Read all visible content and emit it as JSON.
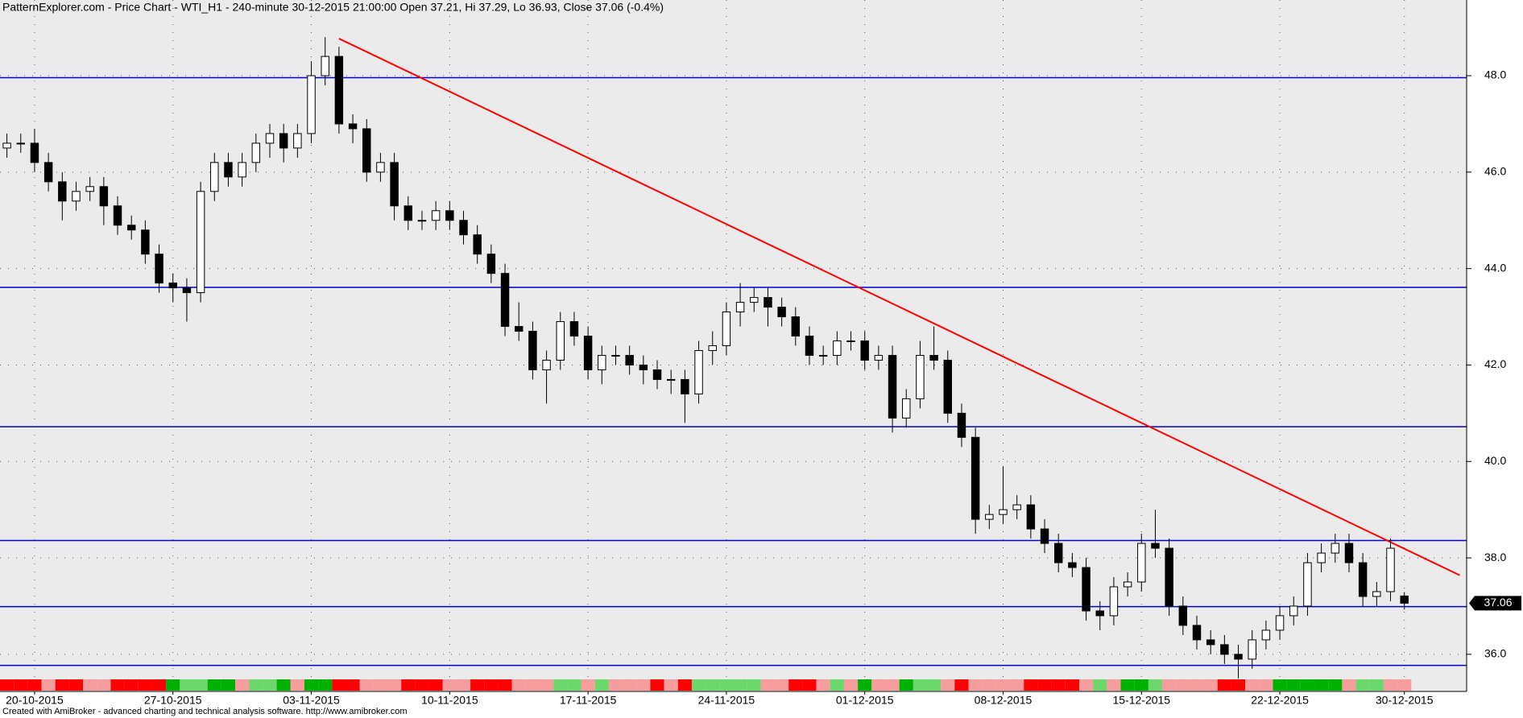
{
  "chart_data": {
    "type": "candlestick",
    "title": "PatternExplorer.com - Price Chart - WTI_H1 - 240-minute 30-12-2015 21:00:00 Open 37.21, Hi 37.29, Lo 36.93, Close 37.06 (-0.4%)",
    "footer": "Created with AmiBroker - advanced charting and technical analysis software. http://www.amibroker.com",
    "categories": [
      null,
      null,
      "20-10-2015",
      null,
      null,
      null,
      null,
      null,
      null,
      null,
      null,
      null,
      "27-10-2015",
      null,
      null,
      null,
      null,
      null,
      null,
      null,
      null,
      null,
      "03-11-2015",
      null,
      null,
      null,
      null,
      null,
      null,
      null,
      null,
      null,
      "10-11-2015",
      null,
      null,
      null,
      null,
      null,
      null,
      null,
      null,
      null,
      "17-11-2015",
      null,
      null,
      null,
      null,
      null,
      null,
      null,
      null,
      null,
      "24-11-2015",
      null,
      null,
      null,
      null,
      null,
      null,
      null,
      null,
      null,
      "01-12-2015",
      null,
      null,
      null,
      null,
      null,
      null,
      null,
      null,
      null,
      "08-12-2015",
      null,
      null,
      null,
      null,
      null,
      null,
      null,
      null,
      null,
      "15-12-2015",
      null,
      null,
      null,
      null,
      null,
      null,
      null,
      null,
      null,
      "22-12-2015",
      null,
      null,
      null,
      null,
      null,
      null,
      null,
      null,
      "30-12-2015"
    ],
    "open": [
      46.5,
      46.6,
      46.6,
      46.2,
      45.8,
      45.4,
      45.6,
      45.7,
      45.3,
      44.9,
      44.8,
      44.3,
      43.7,
      43.6,
      43.5,
      45.6,
      46.2,
      45.9,
      46.2,
      46.6,
      46.8,
      46.5,
      46.8,
      48.0,
      48.4,
      47.0,
      46.9,
      46.0,
      46.2,
      45.3,
      45.0,
      45.0,
      45.2,
      45.0,
      44.7,
      44.3,
      43.9,
      42.8,
      42.7,
      41.9,
      42.1,
      42.9,
      42.6,
      41.9,
      42.2,
      42.2,
      42.0,
      41.9,
      41.7,
      41.7,
      41.4,
      42.3,
      42.4,
      43.1,
      43.3,
      43.4,
      43.2,
      43.0,
      42.6,
      42.2,
      42.2,
      42.5,
      42.5,
      42.1,
      42.2,
      40.9,
      41.3,
      42.2,
      42.1,
      41.0,
      40.5,
      38.8,
      38.9,
      39.0,
      39.1,
      38.6,
      38.3,
      37.9,
      37.8,
      36.9,
      36.8,
      37.4,
      37.5,
      38.3,
      38.2,
      37.0,
      36.6,
      36.3,
      36.2,
      36.0,
      35.9,
      36.3,
      36.5,
      36.8,
      37.0,
      37.9,
      38.1,
      38.3,
      37.9,
      37.2,
      37.3,
      37.21
    ],
    "high": [
      46.8,
      46.8,
      46.9,
      46.4,
      46.0,
      45.8,
      45.9,
      45.9,
      45.5,
      45.1,
      45.0,
      44.5,
      43.9,
      43.8,
      45.8,
      46.4,
      46.4,
      46.4,
      46.8,
      47.0,
      47.0,
      47.0,
      48.3,
      48.8,
      48.6,
      47.2,
      47.1,
      46.4,
      46.4,
      45.5,
      45.2,
      45.4,
      45.4,
      45.2,
      44.9,
      44.5,
      44.1,
      43.3,
      42.9,
      42.3,
      43.1,
      43.1,
      42.8,
      42.4,
      42.4,
      42.4,
      42.2,
      42.1,
      41.9,
      41.9,
      42.5,
      42.7,
      43.3,
      43.7,
      43.6,
      43.6,
      43.4,
      43.2,
      42.8,
      42.4,
      42.7,
      42.7,
      42.7,
      42.4,
      42.4,
      41.5,
      42.5,
      42.8,
      42.3,
      41.2,
      40.7,
      39.1,
      39.9,
      39.3,
      39.3,
      38.8,
      38.5,
      38.1,
      38.0,
      37.1,
      37.6,
      37.7,
      38.5,
      39.0,
      38.4,
      37.2,
      36.8,
      36.5,
      36.4,
      36.2,
      36.5,
      36.7,
      37.0,
      37.2,
      38.1,
      38.3,
      38.5,
      38.5,
      38.1,
      37.5,
      38.4,
      37.29
    ],
    "low": [
      46.3,
      46.4,
      46.0,
      45.6,
      45.0,
      45.2,
      45.4,
      44.9,
      44.7,
      44.6,
      44.1,
      43.5,
      43.3,
      42.9,
      43.3,
      45.4,
      45.7,
      45.7,
      46.0,
      46.3,
      46.2,
      46.3,
      46.6,
      47.8,
      46.8,
      46.6,
      45.8,
      45.8,
      45.0,
      44.8,
      44.8,
      44.8,
      44.8,
      44.5,
      44.1,
      43.7,
      42.6,
      42.5,
      41.7,
      41.2,
      41.9,
      42.4,
      41.7,
      41.6,
      42.0,
      41.8,
      41.6,
      41.5,
      41.4,
      40.8,
      41.2,
      42.0,
      42.2,
      42.8,
      43.1,
      42.8,
      42.8,
      42.4,
      42.0,
      42.0,
      42.0,
      42.3,
      41.9,
      41.9,
      40.6,
      40.7,
      41.1,
      41.9,
      40.8,
      40.3,
      38.5,
      38.6,
      38.7,
      38.8,
      38.4,
      38.1,
      37.7,
      37.6,
      36.7,
      36.5,
      36.6,
      37.2,
      37.3,
      38.0,
      36.8,
      36.4,
      36.1,
      36.0,
      35.8,
      35.5,
      35.7,
      36.1,
      36.3,
      36.6,
      36.8,
      37.7,
      37.9,
      37.7,
      37.0,
      37.0,
      37.1,
      36.93
    ],
    "close": [
      46.6,
      46.6,
      46.2,
      45.8,
      45.4,
      45.6,
      45.7,
      45.3,
      44.9,
      44.8,
      44.3,
      43.7,
      43.6,
      43.5,
      45.6,
      46.2,
      45.9,
      46.2,
      46.6,
      46.8,
      46.5,
      46.8,
      48.0,
      48.4,
      47.0,
      46.9,
      46.0,
      46.2,
      45.3,
      45.0,
      45.0,
      45.2,
      45.0,
      44.7,
      44.3,
      43.9,
      42.8,
      42.7,
      41.9,
      42.1,
      42.9,
      42.6,
      41.9,
      42.2,
      42.2,
      42.0,
      41.9,
      41.7,
      41.7,
      41.4,
      42.3,
      42.4,
      43.1,
      43.3,
      43.4,
      43.2,
      43.0,
      42.6,
      42.2,
      42.2,
      42.5,
      42.5,
      42.1,
      42.2,
      40.9,
      41.3,
      42.2,
      42.1,
      41.0,
      40.5,
      38.8,
      38.9,
      39.0,
      39.1,
      38.6,
      38.3,
      37.9,
      37.8,
      36.9,
      36.8,
      37.4,
      37.5,
      38.3,
      38.2,
      37.0,
      36.6,
      36.3,
      36.2,
      36.0,
      35.9,
      36.3,
      36.5,
      36.8,
      37.0,
      37.9,
      38.1,
      38.3,
      37.9,
      37.2,
      37.3,
      38.2,
      37.06
    ],
    "up_color": "#ffffff",
    "down_color": "#000000",
    "ylim": [
      35.23,
      49.57
    ],
    "yticks": [
      {
        "value": 36,
        "label": "36.0"
      },
      {
        "value": 38,
        "label": "38.0"
      },
      {
        "value": 40,
        "label": "40.0"
      },
      {
        "value": 42,
        "label": "42.0"
      },
      {
        "value": 44,
        "label": "44.0"
      },
      {
        "value": 46,
        "label": "46.0"
      },
      {
        "value": 48,
        "label": "48.0"
      }
    ],
    "grid": true,
    "hlines": {
      "color": "#0000cc",
      "values": [
        47.96,
        43.61,
        40.72,
        38.36,
        36.99,
        35.77
      ]
    },
    "trendline": {
      "color": "#ff0000",
      "x": [
        24,
        105
      ],
      "y": [
        48.77,
        37.64
      ]
    },
    "signal_colors": [
      "#ff0000",
      "#ff0000",
      "#ff0000",
      "#f89d9d",
      "#ff0000",
      "#ff0000",
      "#f89d9d",
      "#f89d9d",
      "#ff0000",
      "#ff0000",
      "#ff0000",
      "#ff0000",
      "#00b000",
      "#6ad86a",
      "#6ad86a",
      "#00b000",
      "#00b000",
      "#f89d9d",
      "#6ad86a",
      "#6ad86a",
      "#00b000",
      "#f89d9d",
      "#00b000",
      "#00b000",
      "#ff0000",
      "#ff0000",
      "#f89d9d",
      "#f89d9d",
      "#f89d9d",
      "#ff0000",
      "#ff0000",
      "#ff0000",
      "#f89d9d",
      "#f89d9d",
      "#ff0000",
      "#ff0000",
      "#ff0000",
      "#f89d9d",
      "#f89d9d",
      "#f89d9d",
      "#6ad86a",
      "#6ad86a",
      "#f89d9d",
      "#6ad86a",
      "#f89d9d",
      "#f89d9d",
      "#f89d9d",
      "#ff0000",
      "#f89d9d",
      "#ff0000",
      "#6ad86a",
      "#6ad86a",
      "#6ad86a",
      "#6ad86a",
      "#6ad86a",
      "#f89d9d",
      "#f89d9d",
      "#ff0000",
      "#ff0000",
      "#f89d9d",
      "#6ad86a",
      "#f89d9d",
      "#00b000",
      "#f89d9d",
      "#f89d9d",
      "#00b000",
      "#6ad86a",
      "#6ad86a",
      "#f89d9d",
      "#ff0000",
      "#f89d9d",
      "#f89d9d",
      "#f89d9d",
      "#f89d9d",
      "#ff0000",
      "#ff0000",
      "#ff0000",
      "#ff0000",
      "#f89d9d",
      "#6ad86a",
      "#f89d9d",
      "#00b000",
      "#00b000",
      "#6ad86a",
      "#f89d9d",
      "#f89d9d",
      "#f89d9d",
      "#f89d9d",
      "#ff0000",
      "#ff0000",
      "#f89d9d",
      "#f89d9d",
      "#00b000",
      "#00b000",
      "#00b000",
      "#00b000",
      "#00b000",
      "#f89d9d",
      "#6ad86a",
      "#6ad86a",
      "#f89d9d",
      "#f89d9d"
    ]
  }
}
